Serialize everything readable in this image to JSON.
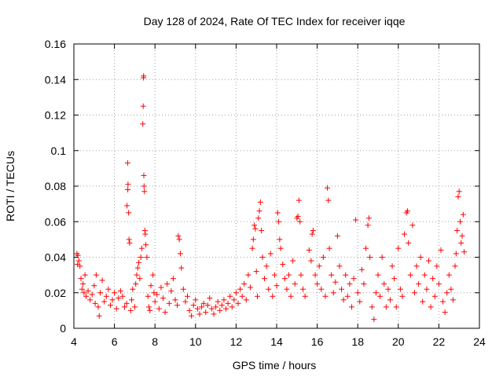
{
  "chart_data": {
    "type": "scatter",
    "title": "Day 128 of 2024, Rate Of TEC Index for receiver iqqe",
    "xlabel": "GPS time / hours",
    "ylabel": "ROTI / TECUs",
    "xlim": [
      4,
      24
    ],
    "ylim": [
      0,
      0.16
    ],
    "grid": true,
    "marker": "+",
    "color": "#ff0000",
    "x_ticks": [
      "4",
      "6",
      "8",
      "10",
      "12",
      "14",
      "16",
      "18",
      "20",
      "22",
      "24"
    ],
    "y_ticks": [
      "0",
      "0.02",
      "0.04",
      "0.06",
      "0.08",
      "0.1",
      "0.12",
      "0.14",
      "0.16"
    ],
    "series": [
      {
        "name": "ROTI",
        "points": [
          [
            4.15,
            0.042
          ],
          [
            4.18,
            0.036
          ],
          [
            4.2,
            0.041
          ],
          [
            4.25,
            0.038
          ],
          [
            4.3,
            0.035
          ],
          [
            4.35,
            0.028
          ],
          [
            4.4,
            0.022
          ],
          [
            4.45,
            0.025
          ],
          [
            4.5,
            0.02
          ],
          [
            4.55,
            0.03
          ],
          [
            4.6,
            0.018
          ],
          [
            4.7,
            0.021
          ],
          [
            4.8,
            0.016
          ],
          [
            4.9,
            0.019
          ],
          [
            5.0,
            0.024
          ],
          [
            5.05,
            0.014
          ],
          [
            5.1,
            0.03
          ],
          [
            5.2,
            0.012
          ],
          [
            5.25,
            0.007
          ],
          [
            5.3,
            0.02
          ],
          [
            5.4,
            0.027
          ],
          [
            5.5,
            0.015
          ],
          [
            5.6,
            0.018
          ],
          [
            5.7,
            0.022
          ],
          [
            5.8,
            0.013
          ],
          [
            5.9,
            0.016
          ],
          [
            6.0,
            0.02
          ],
          [
            6.1,
            0.011
          ],
          [
            6.2,
            0.017
          ],
          [
            6.3,
            0.021
          ],
          [
            6.4,
            0.018
          ],
          [
            6.5,
            0.012
          ],
          [
            6.6,
            0.014
          ],
          [
            6.62,
            0.069
          ],
          [
            6.65,
            0.093
          ],
          [
            6.66,
            0.078
          ],
          [
            6.67,
            0.081
          ],
          [
            6.7,
            0.065
          ],
          [
            6.72,
            0.05
          ],
          [
            6.75,
            0.048
          ],
          [
            6.8,
            0.01
          ],
          [
            6.85,
            0.016
          ],
          [
            6.9,
            0.022
          ],
          [
            7.0,
            0.012
          ],
          [
            7.05,
            0.025
          ],
          [
            7.1,
            0.03
          ],
          [
            7.15,
            0.034
          ],
          [
            7.2,
            0.037
          ],
          [
            7.25,
            0.028
          ],
          [
            7.3,
            0.04
          ],
          [
            7.35,
            0.045
          ],
          [
            7.4,
            0.115
          ],
          [
            7.42,
            0.125
          ],
          [
            7.43,
            0.141
          ],
          [
            7.44,
            0.142
          ],
          [
            7.45,
            0.086
          ],
          [
            7.46,
            0.08
          ],
          [
            7.48,
            0.077
          ],
          [
            7.5,
            0.055
          ],
          [
            7.52,
            0.053
          ],
          [
            7.55,
            0.047
          ],
          [
            7.6,
            0.04
          ],
          [
            7.65,
            0.018
          ],
          [
            7.7,
            0.012
          ],
          [
            7.75,
            0.01
          ],
          [
            7.8,
            0.024
          ],
          [
            7.9,
            0.03
          ],
          [
            7.95,
            0.02
          ],
          [
            8.0,
            0.015
          ],
          [
            8.1,
            0.019
          ],
          [
            8.2,
            0.011
          ],
          [
            8.3,
            0.023
          ],
          [
            8.4,
            0.017
          ],
          [
            8.5,
            0.009
          ],
          [
            8.6,
            0.025
          ],
          [
            8.7,
            0.014
          ],
          [
            8.8,
            0.021
          ],
          [
            8.9,
            0.028
          ],
          [
            9.0,
            0.016
          ],
          [
            9.1,
            0.013
          ],
          [
            9.15,
            0.052
          ],
          [
            9.2,
            0.05
          ],
          [
            9.25,
            0.042
          ],
          [
            9.3,
            0.034
          ],
          [
            9.4,
            0.022
          ],
          [
            9.5,
            0.015
          ],
          [
            9.6,
            0.018
          ],
          [
            9.7,
            0.01
          ],
          [
            9.8,
            0.007
          ],
          [
            9.9,
            0.013
          ],
          [
            10.0,
            0.016
          ],
          [
            10.1,
            0.011
          ],
          [
            10.2,
            0.008
          ],
          [
            10.3,
            0.012
          ],
          [
            10.4,
            0.014
          ],
          [
            10.5,
            0.009
          ],
          [
            10.6,
            0.013
          ],
          [
            10.7,
            0.017
          ],
          [
            10.8,
            0.011
          ],
          [
            10.9,
            0.008
          ],
          [
            11.0,
            0.012
          ],
          [
            11.1,
            0.015
          ],
          [
            11.2,
            0.01
          ],
          [
            11.3,
            0.013
          ],
          [
            11.4,
            0.016
          ],
          [
            11.5,
            0.011
          ],
          [
            11.6,
            0.014
          ],
          [
            11.7,
            0.018
          ],
          [
            11.8,
            0.012
          ],
          [
            11.9,
            0.016
          ],
          [
            12.0,
            0.02
          ],
          [
            12.1,
            0.014
          ],
          [
            12.2,
            0.022
          ],
          [
            12.3,
            0.018
          ],
          [
            12.4,
            0.025
          ],
          [
            12.5,
            0.016
          ],
          [
            12.6,
            0.03
          ],
          [
            12.7,
            0.023
          ],
          [
            12.8,
            0.045
          ],
          [
            12.85,
            0.05
          ],
          [
            12.9,
            0.058
          ],
          [
            12.95,
            0.056
          ],
          [
            13.0,
            0.032
          ],
          [
            13.05,
            0.018
          ],
          [
            13.1,
            0.062
          ],
          [
            13.15,
            0.066
          ],
          [
            13.2,
            0.071
          ],
          [
            13.25,
            0.055
          ],
          [
            13.3,
            0.04
          ],
          [
            13.4,
            0.028
          ],
          [
            13.5,
            0.035
          ],
          [
            13.6,
            0.022
          ],
          [
            13.7,
            0.042
          ],
          [
            13.8,
            0.018
          ],
          [
            13.9,
            0.03
          ],
          [
            14.0,
            0.024
          ],
          [
            14.05,
            0.065
          ],
          [
            14.1,
            0.06
          ],
          [
            14.15,
            0.05
          ],
          [
            14.2,
            0.045
          ],
          [
            14.3,
            0.036
          ],
          [
            14.4,
            0.028
          ],
          [
            14.5,
            0.022
          ],
          [
            14.6,
            0.03
          ],
          [
            14.7,
            0.018
          ],
          [
            14.8,
            0.038
          ],
          [
            14.9,
            0.025
          ],
          [
            15.0,
            0.062
          ],
          [
            15.05,
            0.063
          ],
          [
            15.1,
            0.072
          ],
          [
            15.15,
            0.06
          ],
          [
            15.2,
            0.03
          ],
          [
            15.3,
            0.022
          ],
          [
            15.4,
            0.018
          ],
          [
            15.6,
            0.044
          ],
          [
            15.7,
            0.038
          ],
          [
            15.75,
            0.053
          ],
          [
            15.8,
            0.055
          ],
          [
            15.9,
            0.03
          ],
          [
            16.0,
            0.025
          ],
          [
            16.1,
            0.035
          ],
          [
            16.2,
            0.022
          ],
          [
            16.3,
            0.04
          ],
          [
            16.4,
            0.018
          ],
          [
            16.5,
            0.079
          ],
          [
            16.55,
            0.072
          ],
          [
            16.6,
            0.045
          ],
          [
            16.7,
            0.03
          ],
          [
            16.8,
            0.02
          ],
          [
            16.9,
            0.026
          ],
          [
            17.0,
            0.052
          ],
          [
            17.1,
            0.035
          ],
          [
            17.2,
            0.022
          ],
          [
            17.3,
            0.016
          ],
          [
            17.4,
            0.03
          ],
          [
            17.5,
            0.018
          ],
          [
            17.6,
            0.025
          ],
          [
            17.7,
            0.012
          ],
          [
            17.8,
            0.028
          ],
          [
            17.9,
            0.061
          ],
          [
            18.0,
            0.02
          ],
          [
            18.1,
            0.015
          ],
          [
            18.2,
            0.033
          ],
          [
            18.3,
            0.025
          ],
          [
            18.4,
            0.045
          ],
          [
            18.5,
            0.058
          ],
          [
            18.55,
            0.062
          ],
          [
            18.6,
            0.04
          ],
          [
            18.7,
            0.012
          ],
          [
            18.8,
            0.005
          ],
          [
            18.9,
            0.02
          ],
          [
            19.0,
            0.03
          ],
          [
            19.1,
            0.018
          ],
          [
            19.2,
            0.04
          ],
          [
            19.3,
            0.025
          ],
          [
            19.4,
            0.012
          ],
          [
            19.5,
            0.022
          ],
          [
            19.6,
            0.016
          ],
          [
            19.7,
            0.035
          ],
          [
            19.8,
            0.028
          ],
          [
            19.9,
            0.012
          ],
          [
            20.0,
            0.045
          ],
          [
            20.1,
            0.022
          ],
          [
            20.2,
            0.018
          ],
          [
            20.3,
            0.053
          ],
          [
            20.4,
            0.065
          ],
          [
            20.45,
            0.066
          ],
          [
            20.5,
            0.048
          ],
          [
            20.6,
            0.03
          ],
          [
            20.7,
            0.058
          ],
          [
            20.8,
            0.02
          ],
          [
            20.9,
            0.035
          ],
          [
            21.0,
            0.025
          ],
          [
            21.1,
            0.04
          ],
          [
            21.2,
            0.015
          ],
          [
            21.3,
            0.03
          ],
          [
            21.4,
            0.022
          ],
          [
            21.5,
            0.038
          ],
          [
            21.6,
            0.012
          ],
          [
            21.7,
            0.028
          ],
          [
            21.8,
            0.018
          ],
          [
            21.9,
            0.035
          ],
          [
            22.0,
            0.025
          ],
          [
            22.1,
            0.044
          ],
          [
            22.2,
            0.015
          ],
          [
            22.3,
            0.009
          ],
          [
            22.4,
            0.02
          ],
          [
            22.5,
            0.03
          ],
          [
            22.6,
            0.022
          ],
          [
            22.7,
            0.016
          ],
          [
            22.8,
            0.035
          ],
          [
            22.85,
            0.042
          ],
          [
            22.9,
            0.055
          ],
          [
            22.95,
            0.074
          ],
          [
            23.0,
            0.077
          ],
          [
            23.05,
            0.06
          ],
          [
            23.1,
            0.048
          ],
          [
            23.15,
            0.052
          ],
          [
            23.2,
            0.064
          ],
          [
            23.25,
            0.043
          ]
        ]
      }
    ]
  }
}
